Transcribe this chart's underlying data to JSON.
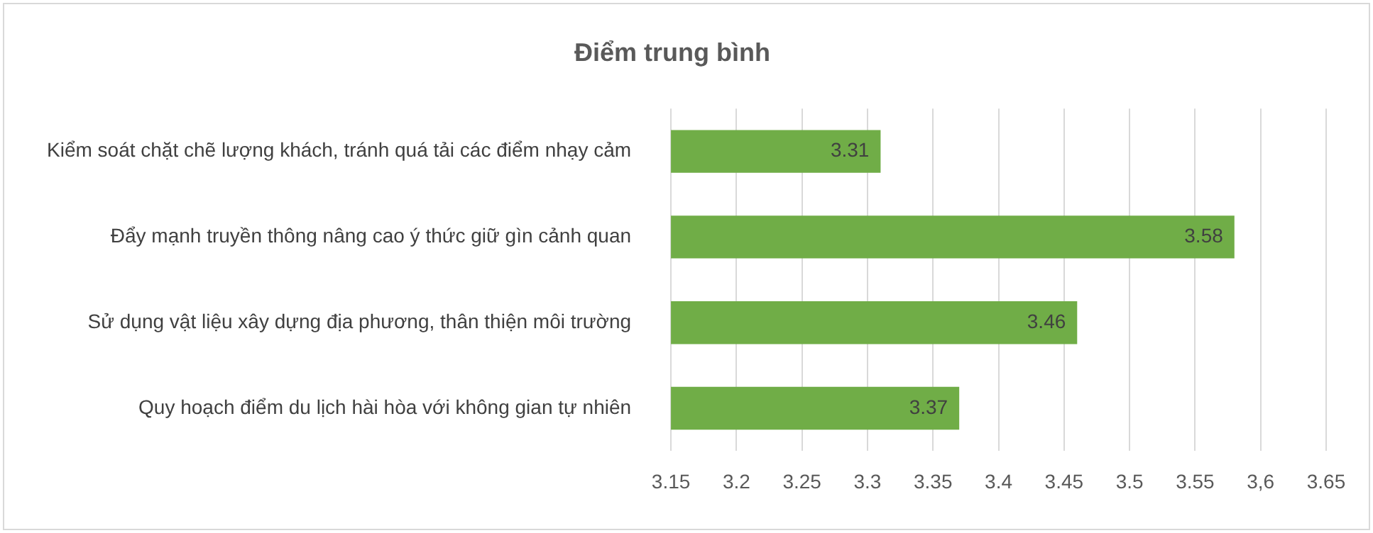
{
  "chart_data": {
    "type": "bar",
    "orientation": "horizontal",
    "title": "Điểm trung bình",
    "categories": [
      "Kiểm soát chặt chẽ lượng khách, tránh quá tải các điểm nhạy cảm",
      "Đẩy mạnh truyền thông nâng cao ý thức giữ gìn cảnh quan",
      "Sử dụng vật liệu xây dựng địa phương, thân thiện môi trường",
      "Quy hoạch điểm du lịch hài hòa với không gian tự nhiên"
    ],
    "values": [
      3.31,
      3.58,
      3.46,
      3.37
    ],
    "color": "#70ad47",
    "xlim": [
      3.15,
      3.65
    ],
    "xticks": [
      3.15,
      3.2,
      3.25,
      3.3,
      3.35,
      3.4,
      3.45,
      3.5,
      3.55,
      {
        "value": 3.6,
        "label": "3,6"
      },
      3.65
    ],
    "grid": "x",
    "data_labels": true
  }
}
